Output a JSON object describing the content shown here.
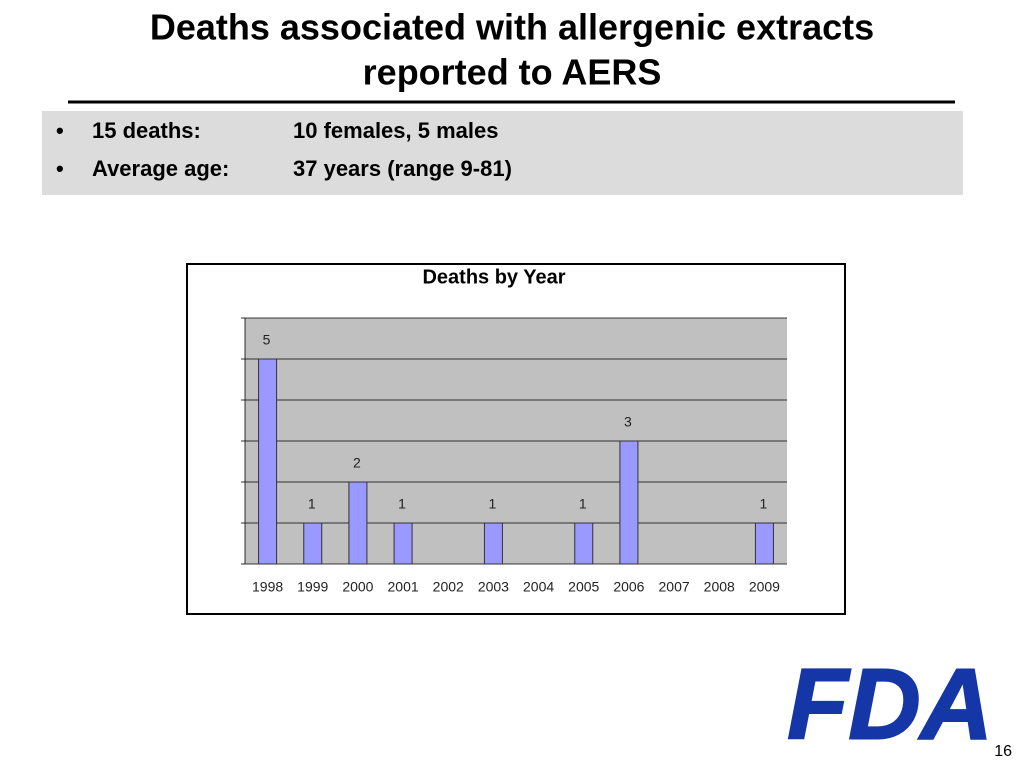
{
  "slide": {
    "title_lines": [
      "Deaths associated with allergenic extracts",
      "reported to AERS"
    ],
    "bullets": [
      {
        "label": "15 deaths:",
        "text": "10 females, 5 males"
      },
      {
        "label": "Average age:",
        "text": "37 years (range 9-81)"
      }
    ],
    "logo": "FDA",
    "page_number": "16"
  },
  "chart_data": {
    "type": "bar",
    "title": "Deaths by Year",
    "categories": [
      "1998",
      "1999",
      "2000",
      "2001",
      "2002",
      "2003",
      "2004",
      "2005",
      "2006",
      "2007",
      "2008",
      "2009"
    ],
    "values": [
      5,
      1,
      2,
      1,
      0,
      1,
      0,
      1,
      3,
      0,
      0,
      1
    ],
    "color": "#9999ff",
    "ylim": [
      0,
      6
    ],
    "yticks": [
      0,
      1,
      2,
      3,
      4,
      5,
      6
    ],
    "grid": true
  }
}
